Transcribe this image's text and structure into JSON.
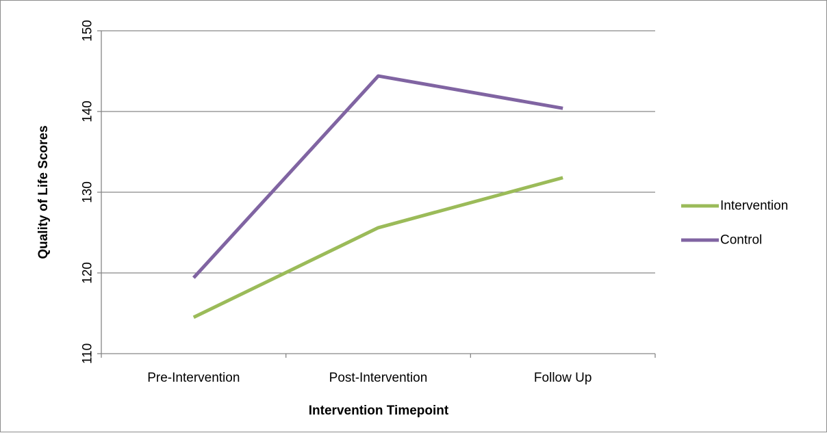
{
  "chart_data": {
    "type": "line",
    "title": "",
    "xlabel": "Intervention Timepoint",
    "ylabel": "Quality of Life Scores",
    "categories": [
      "Pre-Intervention",
      "Post-Intervention",
      "Follow Up"
    ],
    "ylim": [
      110,
      150
    ],
    "yticks": [
      "110",
      "120",
      "130",
      "140",
      "150"
    ],
    "grid": true,
    "legend_position": "right",
    "series": [
      {
        "name": "Intervention",
        "values": [
          114.5,
          125.6,
          131.8
        ],
        "color": "#9bbb59"
      },
      {
        "name": "Control",
        "values": [
          119.4,
          144.4,
          140.4
        ],
        "color": "#8064a2"
      }
    ]
  }
}
